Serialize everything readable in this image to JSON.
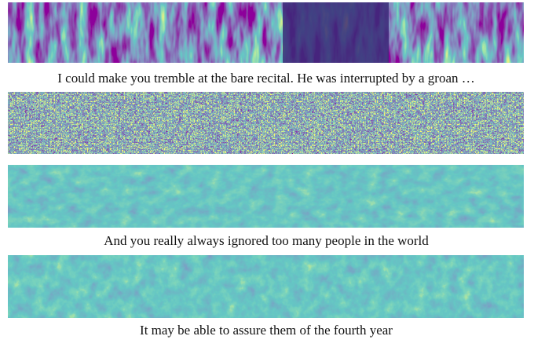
{
  "figure": {
    "captions": [
      "I could make you tremble at the bare recital. He was interrupted by a groan …",
      "And you really always ignored too many people in the world",
      "It may be able to assure them of the fourth year"
    ]
  }
}
